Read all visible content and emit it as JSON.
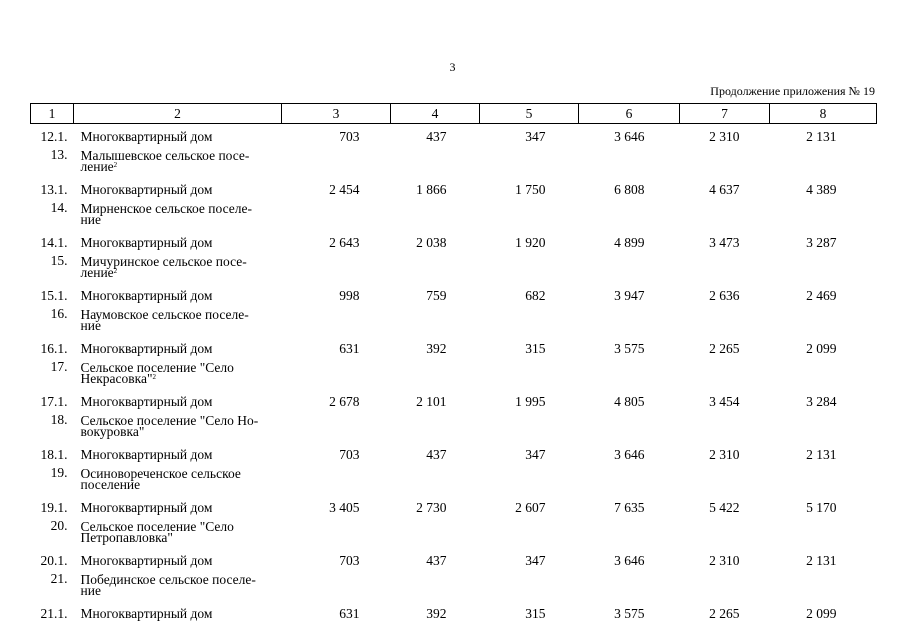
{
  "page_number": "3",
  "continuation_label": "Продолжение приложения № 19",
  "columns": [
    "1",
    "2",
    "3",
    "4",
    "5",
    "6",
    "7",
    "8"
  ],
  "rows": [
    {
      "kind": "data",
      "num": "12.1.",
      "name": "Многоквартирный дом",
      "values": [
        "703",
        "437",
        "347",
        "3 646",
        "2 310",
        "2 131"
      ]
    },
    {
      "kind": "heading",
      "num": "13.",
      "name_lines": [
        "Малышевское сельское посе-",
        "ление"
      ],
      "footnote": "2"
    },
    {
      "kind": "data",
      "num": "13.1.",
      "name": "Многоквартирный дом",
      "values": [
        "2 454",
        "1 866",
        "1 750",
        "6 808",
        "4 637",
        "4 389"
      ]
    },
    {
      "kind": "heading",
      "num": "14.",
      "name_lines": [
        "Мирненское сельское поселе-",
        "ние"
      ],
      "footnote": ""
    },
    {
      "kind": "data",
      "num": "14.1.",
      "name": "Многоквартирный дом",
      "values": [
        "2 643",
        "2 038",
        "1 920",
        "4 899",
        "3 473",
        "3 287"
      ]
    },
    {
      "kind": "heading",
      "num": "15.",
      "name_lines": [
        "Мичуринское сельское посе-",
        "ление"
      ],
      "footnote": "2"
    },
    {
      "kind": "data",
      "num": "15.1.",
      "name": "Многоквартирный дом",
      "values": [
        "998",
        "759",
        "682",
        "3 947",
        "2 636",
        "2 469"
      ]
    },
    {
      "kind": "heading",
      "num": "16.",
      "name_lines": [
        "Наумовское сельское поселе-",
        "ние"
      ],
      "footnote": ""
    },
    {
      "kind": "data",
      "num": "16.1.",
      "name": "Многоквартирный дом",
      "values": [
        "631",
        "392",
        "315",
        "3 575",
        "2 265",
        "2 099"
      ]
    },
    {
      "kind": "heading",
      "num": "17.",
      "name_lines": [
        "Сельское поселение \"Село",
        "Некрасовка\""
      ],
      "footnote": "2"
    },
    {
      "kind": "data",
      "num": "17.1.",
      "name": "Многоквартирный дом",
      "values": [
        "2 678",
        "2 101",
        "1 995",
        "4 805",
        "3 454",
        "3 284"
      ]
    },
    {
      "kind": "heading",
      "num": "18.",
      "name_lines": [
        "Сельское поселение \"Село Но-",
        "вокуровка\""
      ],
      "footnote": ""
    },
    {
      "kind": "data",
      "num": "18.1.",
      "name": "Многоквартирный дом",
      "values": [
        "703",
        "437",
        "347",
        "3 646",
        "2 310",
        "2 131"
      ]
    },
    {
      "kind": "heading",
      "num": "19.",
      "name_lines": [
        "Осиновореченское сельское",
        "поселение"
      ],
      "footnote": ""
    },
    {
      "kind": "data",
      "num": "19.1.",
      "name": "Многоквартирный дом",
      "values": [
        "3 405",
        "2 730",
        "2 607",
        "7 635",
        "5 422",
        "5 170"
      ]
    },
    {
      "kind": "heading",
      "num": "20.",
      "name_lines": [
        "Сельское поселение \"Село",
        "Петропавловка\""
      ],
      "footnote": ""
    },
    {
      "kind": "data",
      "num": "20.1.",
      "name": "Многоквартирный дом",
      "values": [
        "703",
        "437",
        "347",
        "3 646",
        "2 310",
        "2 131"
      ]
    },
    {
      "kind": "heading",
      "num": "21.",
      "name_lines": [
        "Побединское сельское поселе-",
        "ние"
      ],
      "footnote": ""
    },
    {
      "kind": "data",
      "num": "21.1.",
      "name": "Многоквартирный дом",
      "values": [
        "631",
        "392",
        "315",
        "3 575",
        "2 265",
        "2 099"
      ]
    }
  ]
}
